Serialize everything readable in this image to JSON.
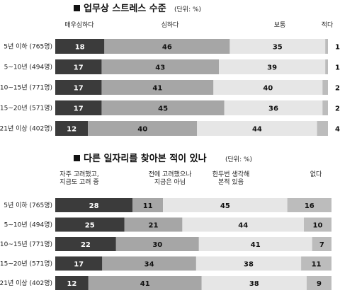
{
  "chart_data": [
    {
      "type": "bar",
      "stacked": true,
      "orientation": "horizontal",
      "title": "업무상 스트레스 수준",
      "unit": "(단위: %)",
      "categories": [
        "5년 이하 (765명)",
        "5~10년 (494명)",
        "10~15년 (771명)",
        "15~20년 (571명)",
        "21년 이상 (402명)"
      ],
      "series": [
        {
          "name": "매우심하다",
          "color": "#3b3b3b",
          "values": [
            18,
            17,
            17,
            17,
            12
          ]
        },
        {
          "name": "심하다",
          "color": "#a6a6a6",
          "values": [
            46,
            43,
            41,
            45,
            40
          ]
        },
        {
          "name": "보통",
          "color": "#e6e6e6",
          "values": [
            35,
            39,
            40,
            36,
            44
          ]
        },
        {
          "name": "적다",
          "color": "#bcbcbc",
          "values": [
            1,
            1,
            2,
            2,
            4
          ]
        }
      ]
    },
    {
      "type": "bar",
      "stacked": true,
      "orientation": "horizontal",
      "title": "다른 일자리를 찾아본 적이 있나",
      "unit": "(단위: %)",
      "categories": [
        "5년 이하 (765명)",
        "5~10년 (494명)",
        "10~15년 (771명)",
        "15~20년 (571명)",
        "21년 이상 (402명)"
      ],
      "series": [
        {
          "name": "자주 고려했고, 지금도 고려 중",
          "color": "#3b3b3b",
          "values": [
            28,
            25,
            22,
            17,
            12
          ]
        },
        {
          "name": "전에 고려했으나 지금은 아님",
          "color": "#a6a6a6",
          "values": [
            11,
            21,
            30,
            34,
            41
          ]
        },
        {
          "name": "한두번 생각해 본적 있음",
          "color": "#e6e6e6",
          "values": [
            45,
            44,
            41,
            38,
            38
          ]
        },
        {
          "name": "없다",
          "color": "#bcbcbc",
          "values": [
            16,
            10,
            7,
            11,
            9
          ]
        }
      ]
    }
  ]
}
